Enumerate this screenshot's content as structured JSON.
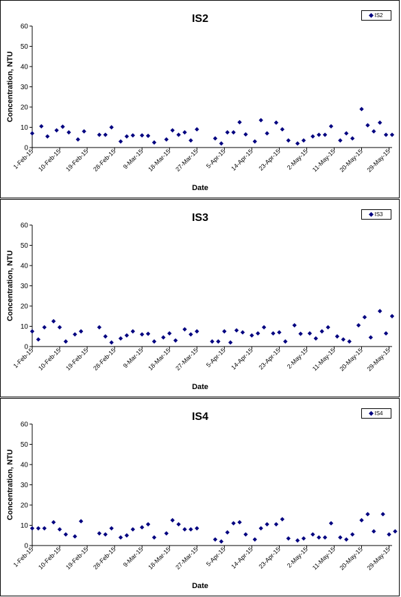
{
  "charts": [
    {
      "title": "IS2",
      "legend": "IS2"
    },
    {
      "title": "IS3",
      "legend": "IS3"
    },
    {
      "title": "IS4",
      "legend": "IS4"
    }
  ],
  "axis": {
    "ylabel": "Concentration, NTU",
    "xlabel": "Date",
    "yticks": [
      "0",
      "10",
      "20",
      "30",
      "40",
      "50",
      "60"
    ],
    "xticks": [
      "1-Feb-15",
      "10-Feb-15",
      "19-Feb-15",
      "28-Feb-15",
      "9-Mar-15",
      "18-Mar-15",
      "27-Mar-15",
      "5-Apr-15",
      "14-Apr-15",
      "23-Apr-15",
      "2-May-15",
      "11-May-15",
      "20-May-15",
      "29-May-15"
    ]
  },
  "colors": {
    "marker": "#000080",
    "axis": "#000000"
  },
  "chart_data": [
    {
      "type": "scatter",
      "title": "IS2",
      "xlabel": "Date",
      "ylabel": "Concentration, NTU",
      "xlim": [
        "1-Feb-15",
        "30-May-15"
      ],
      "ylim": [
        0,
        60
      ],
      "grid": false,
      "legend": "top-right",
      "series": [
        {
          "name": "IS2",
          "points": [
            [
              "1-Feb-15",
              7
            ],
            [
              "4-Feb-15",
              10.5
            ],
            [
              "6-Feb-15",
              5.5
            ],
            [
              "9-Feb-15",
              8.5
            ],
            [
              "11-Feb-15",
              10.3
            ],
            [
              "13-Feb-15",
              7.5
            ],
            [
              "16-Feb-15",
              4
            ],
            [
              "18-Feb-15",
              8
            ],
            [
              "23-Feb-15",
              6.3
            ],
            [
              "25-Feb-15",
              6.3
            ],
            [
              "27-Feb-15",
              10
            ],
            [
              "2-Mar-15",
              3
            ],
            [
              "4-Mar-15",
              5.5
            ],
            [
              "6-Mar-15",
              6
            ],
            [
              "9-Mar-15",
              6
            ],
            [
              "11-Mar-15",
              5.8
            ],
            [
              "13-Mar-15",
              2.5
            ],
            [
              "17-Mar-15",
              4
            ],
            [
              "19-Mar-15",
              8.5
            ],
            [
              "21-Mar-15",
              6.3
            ],
            [
              "23-Mar-15",
              7.5
            ],
            [
              "25-Mar-15",
              3.5
            ],
            [
              "27-Mar-15",
              9
            ],
            [
              "2-Apr-15",
              4.5
            ],
            [
              "4-Apr-15",
              2
            ],
            [
              "6-Apr-15",
              7.5
            ],
            [
              "8-Apr-15",
              7.5
            ],
            [
              "10-Apr-15",
              12.5
            ],
            [
              "12-Apr-15",
              6.5
            ],
            [
              "15-Apr-15",
              3
            ],
            [
              "17-Apr-15",
              13.5
            ],
            [
              "19-Apr-15",
              7
            ],
            [
              "22-Apr-15",
              12.3
            ],
            [
              "24-Apr-15",
              9
            ],
            [
              "26-Apr-15",
              3.5
            ],
            [
              "29-Apr-15",
              2
            ],
            [
              "1-May-15",
              3.5
            ],
            [
              "4-May-15",
              5.5
            ],
            [
              "6-May-15",
              6.3
            ],
            [
              "8-May-15",
              6.3
            ],
            [
              "10-May-15",
              10.5
            ],
            [
              "13-May-15",
              3.5
            ],
            [
              "15-May-15",
              7
            ],
            [
              "17-May-15",
              4.5
            ],
            [
              "20-May-15",
              19
            ],
            [
              "22-May-15",
              11
            ],
            [
              "24-May-15",
              8
            ],
            [
              "26-May-15",
              12.3
            ],
            [
              "28-May-15",
              6.3
            ],
            [
              "30-May-15",
              6.3
            ]
          ]
        }
      ]
    },
    {
      "type": "scatter",
      "title": "IS3",
      "xlabel": "Date",
      "ylabel": "Concentration, NTU",
      "xlim": [
        "1-Feb-15",
        "30-May-15"
      ],
      "ylim": [
        0,
        60
      ],
      "grid": false,
      "legend": "top-right",
      "series": [
        {
          "name": "IS3",
          "points": [
            [
              "1-Feb-15",
              7.5
            ],
            [
              "3-Feb-15",
              3.5
            ],
            [
              "5-Feb-15",
              9.5
            ],
            [
              "8-Feb-15",
              12.5
            ],
            [
              "10-Feb-15",
              9.5
            ],
            [
              "12-Feb-15",
              2.5
            ],
            [
              "15-Feb-15",
              6
            ],
            [
              "17-Feb-15",
              7.5
            ],
            [
              "23-Feb-15",
              9.5
            ],
            [
              "25-Feb-15",
              5
            ],
            [
              "27-Feb-15",
              2
            ],
            [
              "2-Mar-15",
              4
            ],
            [
              "4-Mar-15",
              5.5
            ],
            [
              "6-Mar-15",
              7.5
            ],
            [
              "9-Mar-15",
              6
            ],
            [
              "11-Mar-15",
              6.3
            ],
            [
              "13-Mar-15",
              2.5
            ],
            [
              "16-Mar-15",
              4.5
            ],
            [
              "18-Mar-15",
              6.5
            ],
            [
              "20-Mar-15",
              3
            ],
            [
              "23-Mar-15",
              8.5
            ],
            [
              "25-Mar-15",
              6
            ],
            [
              "27-Mar-15",
              7.5
            ],
            [
              "1-Apr-15",
              2.5
            ],
            [
              "3-Apr-15",
              2.5
            ],
            [
              "5-Apr-15",
              7.5
            ],
            [
              "7-Apr-15",
              2
            ],
            [
              "9-Apr-15",
              8
            ],
            [
              "11-Apr-15",
              7
            ],
            [
              "14-Apr-15",
              5.5
            ],
            [
              "16-Apr-15",
              6.5
            ],
            [
              "18-Apr-15",
              9.5
            ],
            [
              "21-Apr-15",
              6.5
            ],
            [
              "23-Apr-15",
              7
            ],
            [
              "25-Apr-15",
              2.5
            ],
            [
              "28-Apr-15",
              10.5
            ],
            [
              "30-Apr-15",
              6.3
            ],
            [
              "3-May-15",
              6.5
            ],
            [
              "5-May-15",
              4
            ],
            [
              "7-May-15",
              7.5
            ],
            [
              "9-May-15",
              9.5
            ],
            [
              "12-May-15",
              5
            ],
            [
              "14-May-15",
              3.5
            ],
            [
              "16-May-15",
              2.5
            ],
            [
              "19-May-15",
              10.5
            ],
            [
              "21-May-15",
              14.5
            ],
            [
              "23-May-15",
              4.5
            ],
            [
              "26-May-15",
              17.5
            ],
            [
              "28-May-15",
              6.5
            ],
            [
              "30-May-15",
              15
            ]
          ]
        }
      ]
    },
    {
      "type": "scatter",
      "title": "IS4",
      "xlabel": "Date",
      "ylabel": "Concentration, NTU",
      "xlim": [
        "1-Feb-15",
        "30-May-15"
      ],
      "ylim": [
        0,
        60
      ],
      "grid": false,
      "legend": "top-right",
      "series": [
        {
          "name": "IS4",
          "points": [
            [
              "1-Feb-15",
              8.5
            ],
            [
              "3-Feb-15",
              8.5
            ],
            [
              "5-Feb-15",
              8.5
            ],
            [
              "8-Feb-15",
              11.5
            ],
            [
              "10-Feb-15",
              8
            ],
            [
              "12-Feb-15",
              5.5
            ],
            [
              "15-Feb-15",
              4.5
            ],
            [
              "17-Feb-15",
              12
            ],
            [
              "23-Feb-15",
              6
            ],
            [
              "25-Feb-15",
              5.5
            ],
            [
              "27-Feb-15",
              8.5
            ],
            [
              "2-Mar-15",
              4
            ],
            [
              "4-Mar-15",
              5
            ],
            [
              "6-Mar-15",
              8
            ],
            [
              "9-Mar-15",
              9
            ],
            [
              "11-Mar-15",
              10.5
            ],
            [
              "13-Mar-15",
              4
            ],
            [
              "17-Mar-15",
              6
            ],
            [
              "19-Mar-15",
              12.5
            ],
            [
              "21-Mar-15",
              10.5
            ],
            [
              "23-Mar-15",
              8
            ],
            [
              "25-Mar-15",
              8
            ],
            [
              "27-Mar-15",
              8.5
            ],
            [
              "2-Apr-15",
              3
            ],
            [
              "4-Apr-15",
              2
            ],
            [
              "6-Apr-15",
              6.5
            ],
            [
              "8-Apr-15",
              11
            ],
            [
              "10-Apr-15",
              11.5
            ],
            [
              "12-Apr-15",
              5.5
            ],
            [
              "15-Apr-15",
              3
            ],
            [
              "17-Apr-15",
              8.5
            ],
            [
              "19-Apr-15",
              10.5
            ],
            [
              "22-Apr-15",
              10.5
            ],
            [
              "24-Apr-15",
              13
            ],
            [
              "26-Apr-15",
              3.5
            ],
            [
              "29-Apr-15",
              2.5
            ],
            [
              "1-May-15",
              3.5
            ],
            [
              "4-May-15",
              5.5
            ],
            [
              "6-May-15",
              4
            ],
            [
              "8-May-15",
              4
            ],
            [
              "10-May-15",
              11
            ],
            [
              "13-May-15",
              4
            ],
            [
              "15-May-15",
              3
            ],
            [
              "17-May-15",
              5.5
            ],
            [
              "20-May-15",
              12.5
            ],
            [
              "22-May-15",
              15.5
            ],
            [
              "24-May-15",
              7
            ],
            [
              "27-May-15",
              15.5
            ],
            [
              "29-May-15",
              5.5
            ],
            [
              "31-May-15",
              7
            ]
          ]
        }
      ]
    }
  ]
}
